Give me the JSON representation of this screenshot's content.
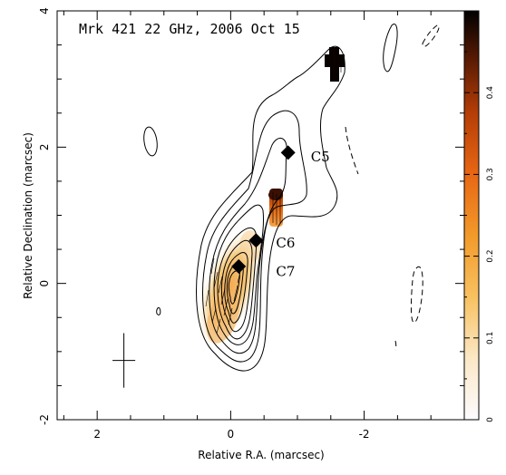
{
  "chart_data": {
    "type": "contour",
    "title": "Mrk 421 22 GHz, 2006 Oct 15",
    "xlabel": "Relative R.A. (marcsec)",
    "ylabel": "Relative Declination (marcsec)",
    "xlim": [
      2.6,
      -3.5
    ],
    "ylim": [
      -2,
      4
    ],
    "x_ticks": [
      2,
      0,
      -2
    ],
    "y_ticks": [
      -2,
      0,
      2,
      4
    ],
    "components": [
      {
        "name": "C5",
        "x": -0.86,
        "y": 1.92,
        "label_x": -1.2,
        "label_y": 1.87
      },
      {
        "name": "C6",
        "x": -0.38,
        "y": 0.63,
        "label_x": -0.68,
        "label_y": 0.61
      },
      {
        "name": "C7",
        "x": -0.12,
        "y": 0.25,
        "label_x": -0.68,
        "label_y": 0.19
      }
    ],
    "colorbar": {
      "range": [
        0,
        0.5
      ],
      "ticks": [
        0,
        0.1,
        0.2,
        0.3,
        0.4
      ],
      "colors": [
        "#fdfbff",
        "#fbe3b0",
        "#f6b33c",
        "#ee6a14",
        "#b83d06",
        "#5a1a04",
        "#000000"
      ]
    },
    "beam": {
      "x": 1.6,
      "y": -1.13,
      "half_width": 0.17,
      "half_height": 0.4
    },
    "grid": false
  }
}
